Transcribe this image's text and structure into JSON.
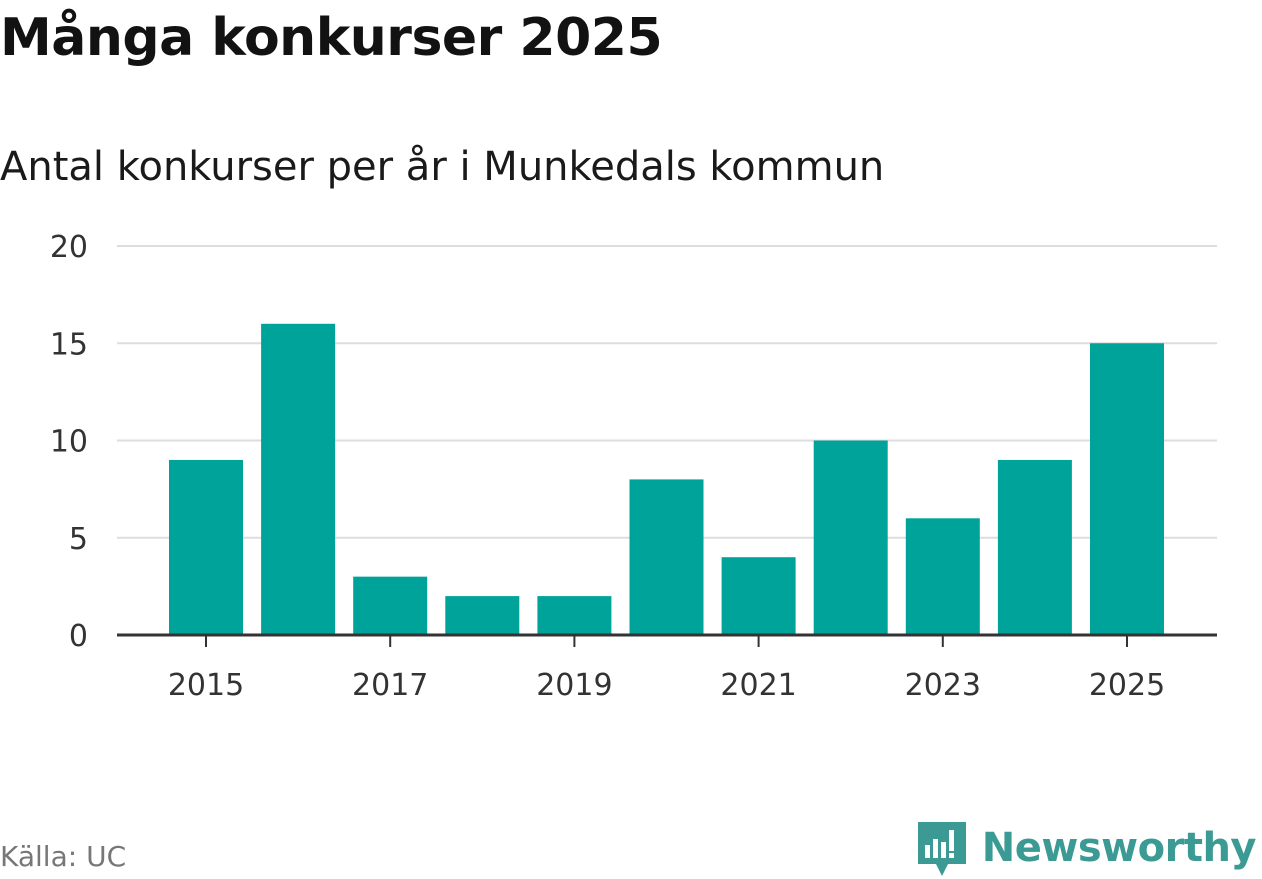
{
  "chart_data": {
    "type": "bar",
    "title": "Många konkurser 2025",
    "subtitle": "Antal konkurser per år i Munkedals kommun",
    "categories": [
      "2015",
      "2016",
      "2017",
      "2018",
      "2019",
      "2020",
      "2021",
      "2022",
      "2023",
      "2024",
      "2025"
    ],
    "values": [
      9,
      16,
      3,
      2,
      2,
      8,
      4,
      10,
      6,
      9,
      15
    ],
    "x_tick_labels": [
      "2015",
      "2017",
      "2019",
      "2021",
      "2023",
      "2025"
    ],
    "y_tick_labels": [
      "0",
      "5",
      "10",
      "15",
      "20"
    ],
    "y_ticks": [
      0,
      5,
      10,
      15,
      20
    ],
    "ylim": [
      0,
      20
    ],
    "xlabel": "",
    "ylabel": "",
    "grid": true,
    "bar_color": "#00a39a",
    "gridline_color": "#dddddd",
    "axis_color": "#333333"
  },
  "footer": {
    "source": "Källa: UC",
    "brand_name": "Newsworthy",
    "brand_icon": "newsworthy-logo-icon",
    "brand_color": "#3b9a93"
  }
}
